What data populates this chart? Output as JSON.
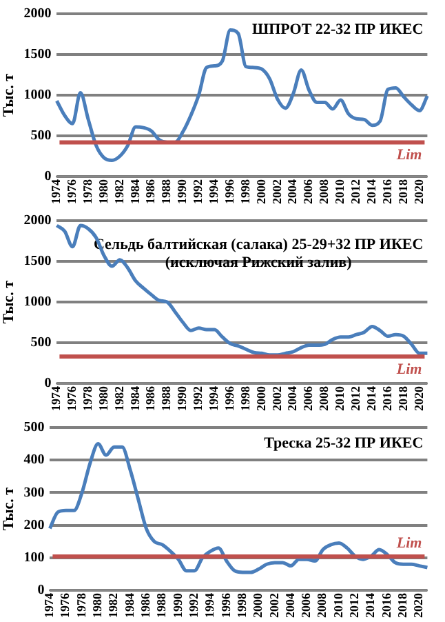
{
  "chart_data": [
    {
      "type": "line",
      "title": "ШПРОТ 22-32 ПР ИКЕС",
      "ylabel": "Тыс. т",
      "categories": [
        "1974",
        null,
        "1976",
        null,
        "1978",
        null,
        "1980",
        null,
        "1982",
        null,
        "1984",
        null,
        "1986",
        null,
        "1988",
        null,
        "1990",
        null,
        "1992",
        null,
        "1994",
        null,
        "1996",
        null,
        "1998",
        null,
        "2000",
        null,
        "2002",
        null,
        "2004",
        null,
        "2006",
        null,
        "2008",
        null,
        "2010",
        null,
        "2012",
        null,
        "2014",
        null,
        "2016",
        null,
        "2018",
        null,
        "2020",
        null
      ],
      "series": [
        {
          "color": "#4a7ebb",
          "values": [
            930,
            750,
            650,
            1030,
            700,
            380,
            230,
            200,
            250,
            380,
            610,
            600,
            560,
            450,
            420,
            420,
            550,
            750,
            1000,
            1340,
            1360,
            1420,
            1800,
            1760,
            1350,
            1340,
            1320,
            1200,
            950,
            840,
            1020,
            1310,
            1060,
            910,
            910,
            830,
            940,
            770,
            710,
            700,
            630,
            680,
            1070,
            1090,
            980,
            880,
            810,
            990
          ]
        }
      ],
      "ylim": [
        0,
        2000
      ],
      "yticks": [
        0,
        500,
        1000,
        1500,
        2000
      ],
      "grid": "y",
      "legend": false,
      "marker": "none",
      "line_style": "solid",
      "ref_lines": [
        {
          "axis": "y",
          "value": 420,
          "label": "Lim",
          "color": "#c0504d"
        }
      ]
    },
    {
      "type": "line",
      "title": "Сельдь балтийская (салака) 25-29+32 ПР ИКЕС\n(исключая Рижский залив)",
      "ylabel": "Тыс. т",
      "categories": [
        "1974",
        null,
        "1976",
        null,
        "1978",
        null,
        "1980",
        null,
        "1982",
        null,
        "1984",
        null,
        "1986",
        null,
        "1988",
        null,
        "1990",
        null,
        "1992",
        null,
        "1994",
        null,
        "1996",
        null,
        "1998",
        null,
        "2000",
        null,
        "2002",
        null,
        "2004",
        null,
        "2006",
        null,
        "2008",
        null,
        "2010",
        null,
        "2012",
        null,
        "2014",
        null,
        "2016",
        null,
        "2018",
        null,
        "2020",
        null
      ],
      "series": [
        {
          "color": "#4a7ebb",
          "values": [
            1940,
            1870,
            1680,
            1940,
            1900,
            1790,
            1570,
            1440,
            1520,
            1420,
            1260,
            1170,
            1090,
            1020,
            1000,
            880,
            750,
            650,
            680,
            660,
            660,
            570,
            490,
            460,
            420,
            380,
            370,
            350,
            350,
            370,
            390,
            440,
            470,
            470,
            480,
            540,
            570,
            570,
            600,
            630,
            700,
            650,
            580,
            600,
            580,
            480,
            370,
            370
          ]
        }
      ],
      "ylim": [
        0,
        2000
      ],
      "yticks": [
        0,
        500,
        1000,
        1500,
        2000
      ],
      "grid": "y",
      "legend": false,
      "marker": "none",
      "line_style": "solid",
      "ref_lines": [
        {
          "axis": "y",
          "value": 330,
          "label": "Lim",
          "color": "#c0504d"
        }
      ]
    },
    {
      "type": "line",
      "title": "Треска 25-32 ПР ИКЕС",
      "ylabel": "Тыс. т",
      "categories": [
        "1974",
        null,
        "1976",
        null,
        "1978",
        null,
        "1980",
        null,
        "1982",
        null,
        "1984",
        null,
        "1986",
        null,
        "1988",
        null,
        "1990",
        null,
        "1992",
        null,
        "1994",
        null,
        "1996",
        null,
        "1998",
        null,
        "2000",
        null,
        "2002",
        null,
        "2004",
        null,
        "2006",
        null,
        "2008",
        null,
        "2010",
        null,
        "2012",
        null,
        "2014",
        null,
        "2016",
        null,
        "2018",
        null,
        "2020",
        null
      ],
      "series": [
        {
          "color": "#4a7ebb",
          "values": [
            190,
            240,
            245,
            245,
            300,
            390,
            450,
            415,
            440,
            440,
            370,
            280,
            190,
            150,
            140,
            120,
            95,
            60,
            60,
            100,
            120,
            130,
            90,
            60,
            55,
            55,
            65,
            80,
            85,
            85,
            75,
            95,
            95,
            90,
            125,
            140,
            145,
            130,
            105,
            95,
            105,
            125,
            110,
            85,
            80,
            80,
            75,
            70
          ]
        }
      ],
      "ylim": [
        0,
        500
      ],
      "yticks": [
        0,
        100,
        200,
        300,
        400,
        500
      ],
      "grid": "y",
      "legend": false,
      "marker": "none",
      "line_style": "solid",
      "ref_lines": [
        {
          "axis": "y",
          "value": 104,
          "label": "Lim",
          "color": "#c0504d"
        }
      ]
    }
  ]
}
